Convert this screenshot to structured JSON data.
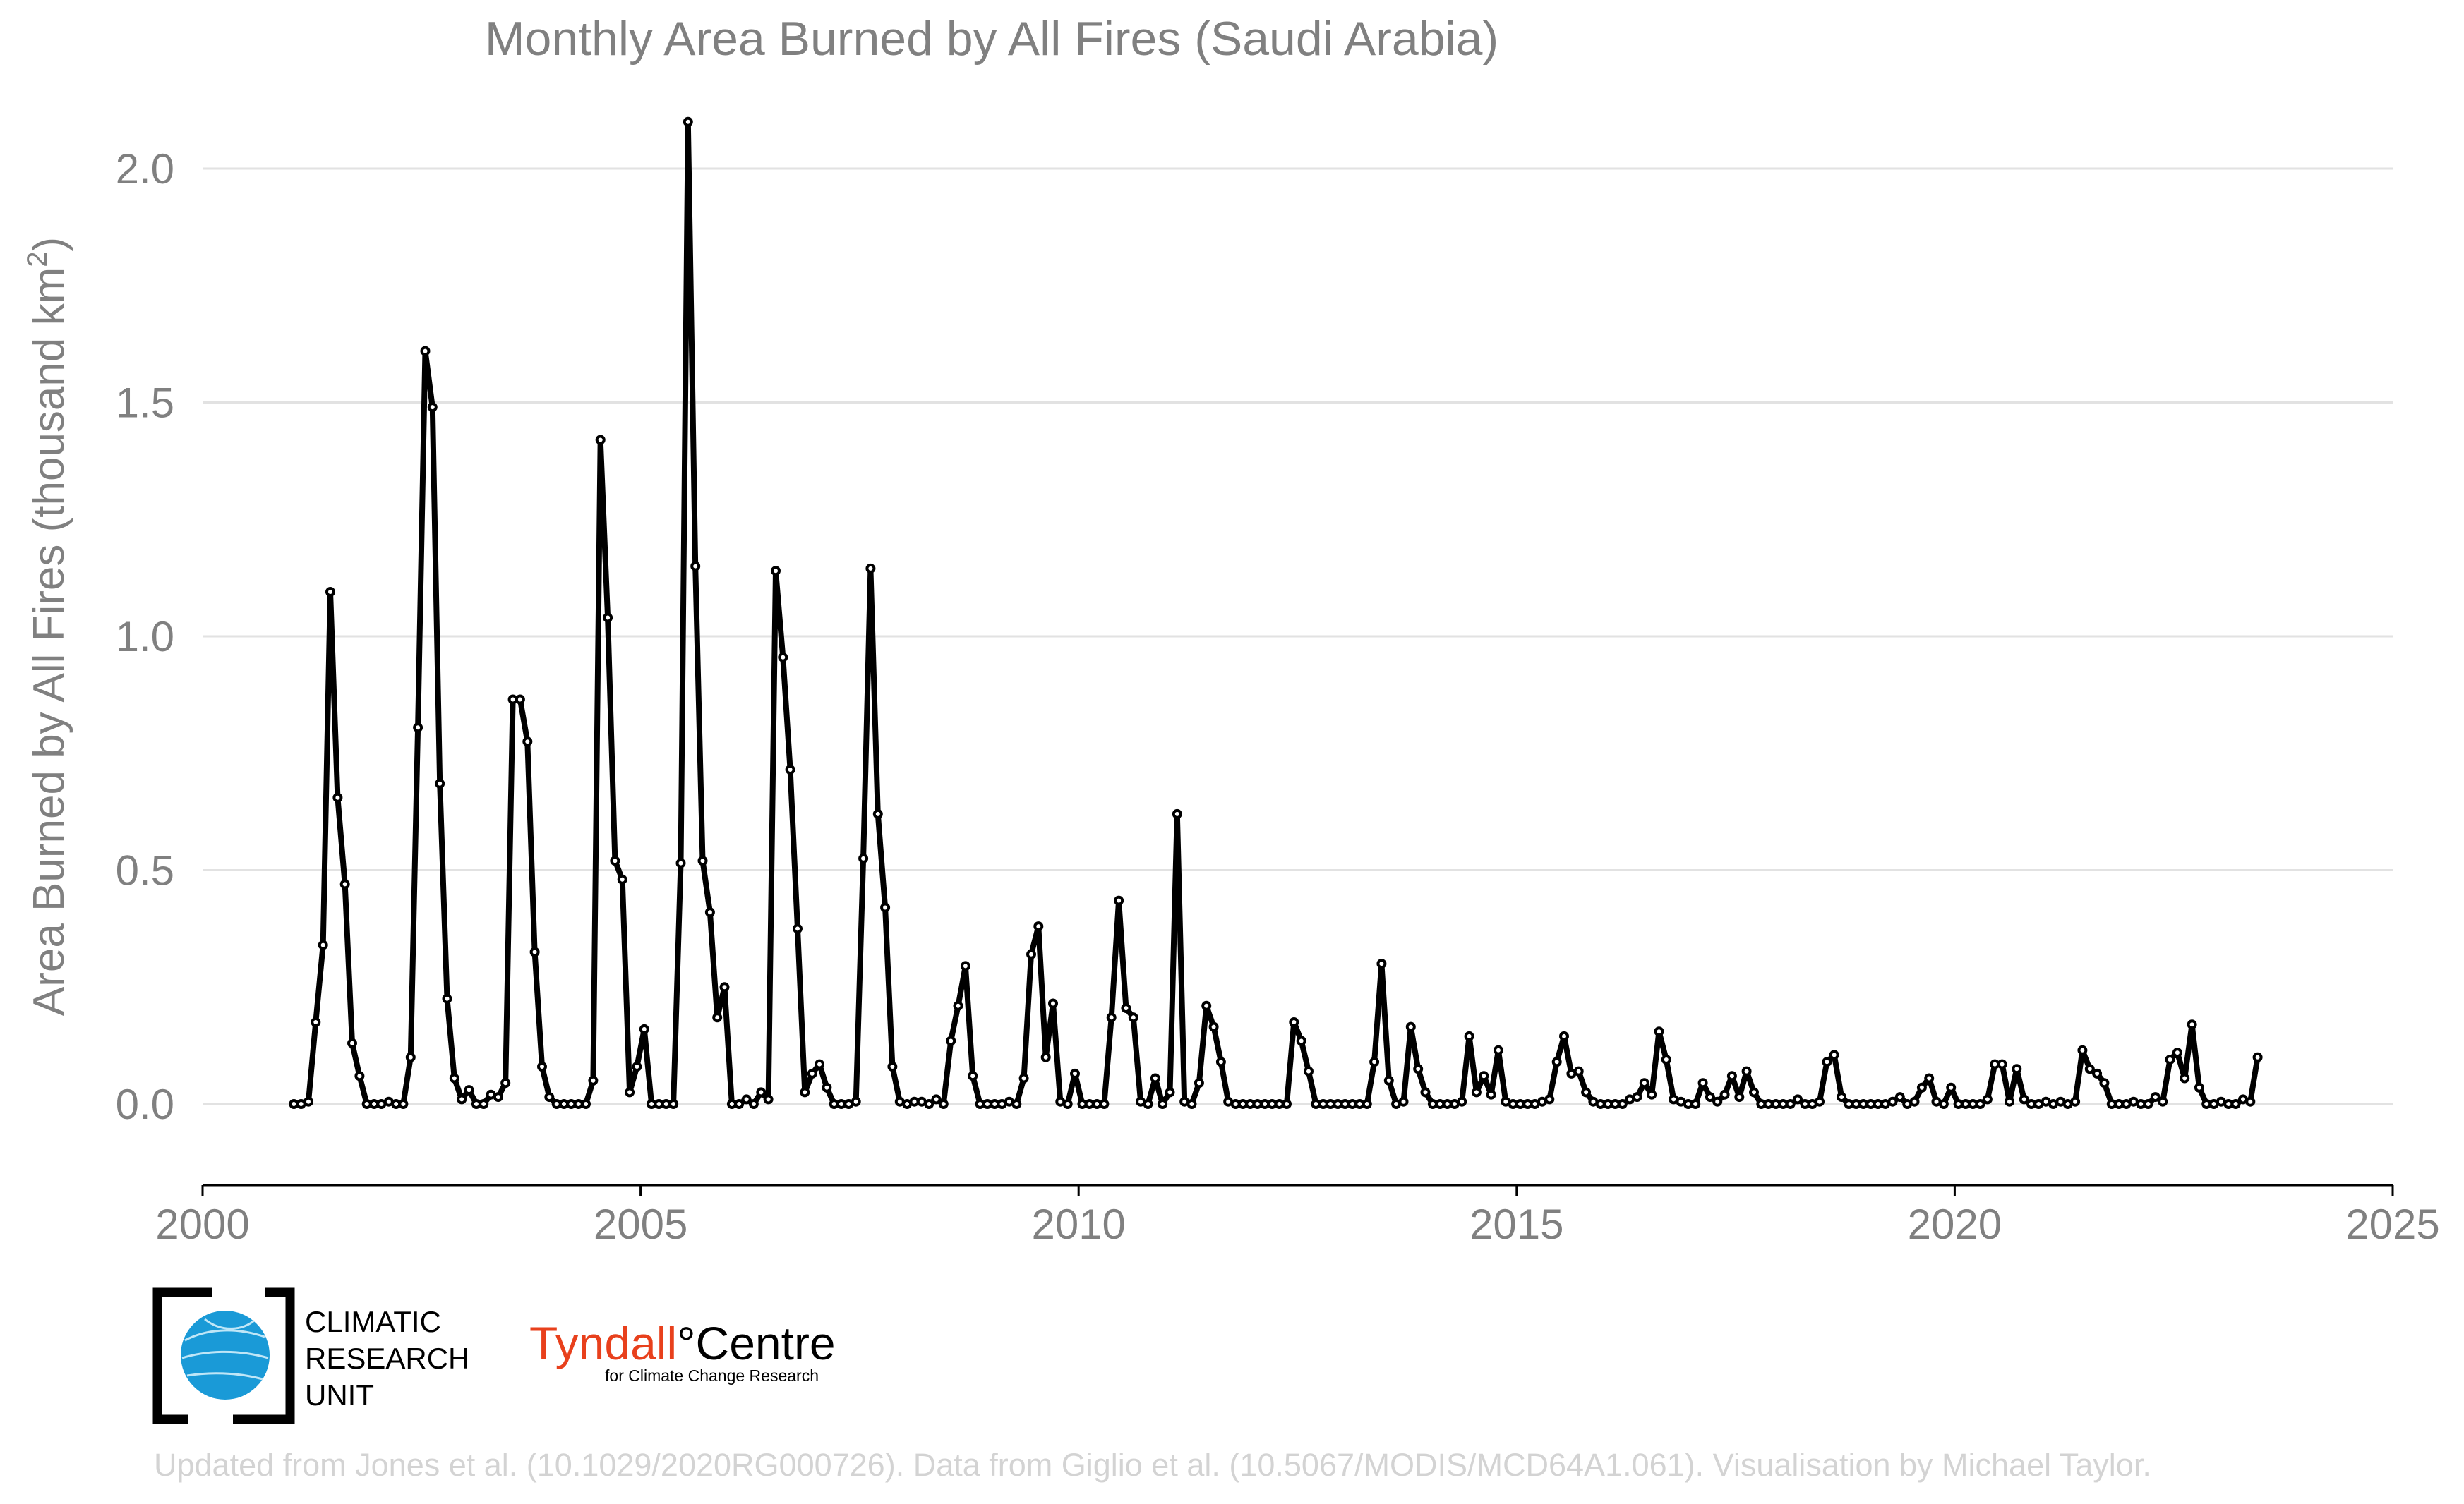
{
  "chart_data": {
    "type": "line",
    "title": "Monthly Area Burned by All Fires (Saudi Arabia)",
    "xlabel": "",
    "ylabel": "Area Burned by All Fires (thousand km²)",
    "xlim": [
      2000,
      2025
    ],
    "ylim": [
      -0.17,
      2.12
    ],
    "xticks": [
      2000,
      2005,
      2010,
      2015,
      2020,
      2025
    ],
    "yticks": [
      0.0,
      0.5,
      1.0,
      1.5,
      2.0
    ],
    "xtick_labels": [
      "2000",
      "2005",
      "2010",
      "2015",
      "2020",
      "2025"
    ],
    "ytick_labels": [
      "0.0",
      "0.5",
      "1.0",
      "1.5",
      "2.0"
    ],
    "grid": "horizontal",
    "x_start": "2001-01",
    "series": [
      {
        "color": "#000000",
        "values": [
          0.0,
          0.0,
          0.005,
          0.175,
          0.34,
          1.095,
          0.655,
          0.47,
          0.13,
          0.06,
          0.0,
          0.0,
          0.0,
          0.005,
          0.0,
          0.0,
          0.1,
          0.805,
          1.61,
          1.49,
          0.685,
          0.225,
          0.055,
          0.01,
          0.03,
          0.0,
          0.0,
          0.02,
          0.015,
          0.045,
          0.865,
          0.865,
          0.775,
          0.325,
          0.08,
          0.015,
          0.0,
          0.0,
          0.0,
          0.0,
          0.0,
          0.05,
          1.42,
          1.04,
          0.52,
          0.48,
          0.025,
          0.08,
          0.16,
          0.0,
          0.0,
          0.0,
          0.0,
          0.515,
          2.1,
          1.15,
          0.52,
          0.41,
          0.185,
          0.25,
          0.0,
          0.0,
          0.01,
          0.0,
          0.025,
          0.01,
          1.14,
          0.955,
          0.715,
          0.375,
          0.025,
          0.065,
          0.085,
          0.035,
          0.0,
          0.0,
          0.0,
          0.005,
          0.525,
          1.145,
          0.62,
          0.42,
          0.08,
          0.005,
          0.0,
          0.005,
          0.005,
          0.0,
          0.01,
          0.0,
          0.135,
          0.21,
          0.295,
          0.06,
          0.0,
          0.0,
          0.0,
          0.0,
          0.005,
          0.0,
          0.055,
          0.32,
          0.38,
          0.1,
          0.215,
          0.005,
          0.0,
          0.065,
          0.0,
          0.0,
          0.0,
          0.0,
          0.185,
          0.435,
          0.205,
          0.185,
          0.005,
          0.0,
          0.055,
          0.0,
          0.025,
          0.62,
          0.005,
          0.0,
          0.045,
          0.21,
          0.165,
          0.09,
          0.005,
          0.0,
          0.0,
          0.0,
          0.0,
          0.0,
          0.0,
          0.0,
          0.0,
          0.175,
          0.135,
          0.07,
          0.0,
          0.0,
          0.0,
          0.0,
          0.0,
          0.0,
          0.0,
          0.0,
          0.09,
          0.3,
          0.05,
          0.0,
          0.005,
          0.165,
          0.075,
          0.025,
          0.0,
          0.0,
          0.0,
          0.0,
          0.005,
          0.145,
          0.025,
          0.06,
          0.02,
          0.115,
          0.005,
          0.0,
          0.0,
          0.0,
          0.0,
          0.005,
          0.01,
          0.09,
          0.145,
          0.065,
          0.07,
          0.025,
          0.005,
          0.0,
          0.0,
          0.0,
          0.0,
          0.01,
          0.015,
          0.045,
          0.02,
          0.155,
          0.095,
          0.01,
          0.005,
          0.0,
          0.0,
          0.045,
          0.015,
          0.005,
          0.02,
          0.06,
          0.015,
          0.07,
          0.025,
          0.0,
          0.0,
          0.0,
          0.0,
          0.0,
          0.01,
          0.0,
          0.0,
          0.005,
          0.09,
          0.105,
          0.015,
          0.0,
          0.0,
          0.0,
          0.0,
          0.0,
          0.0,
          0.005,
          0.015,
          0.0,
          0.005,
          0.035,
          0.055,
          0.005,
          0.0,
          0.035,
          0.0,
          0.0,
          0.0,
          0.0,
          0.01,
          0.085,
          0.085,
          0.005,
          0.075,
          0.01,
          0.0,
          0.0,
          0.005,
          0.0,
          0.005,
          0.0,
          0.005,
          0.115,
          0.075,
          0.065,
          0.045,
          0.0,
          0.0,
          0.0,
          0.005,
          0.0,
          0.0,
          0.015,
          0.005,
          0.095,
          0.11,
          0.055,
          0.17,
          0.035,
          0.0,
          0.0,
          0.005,
          0.0,
          0.0,
          0.01,
          0.005,
          0.1
        ]
      }
    ]
  },
  "logos": {
    "cru_line1": "CLIMATIC",
    "cru_line2": "RESEARCH",
    "cru_line3": "UNIT",
    "tyndall_name": "Tyndall",
    "tyndall_degree": "°",
    "tyndall_centre": "Centre",
    "tyndall_sub": "for Climate Change Research"
  },
  "credit": "Updated from Jones et al. (10.1029/2020RG000726). Data from Giglio et al. (10.5067/MODIS/MCD64A1.061). Visualisation by Michael Taylor.",
  "colors": {
    "text_gray": "#808080",
    "grid": "#e2e2e2",
    "credit": "#d3d3d3",
    "cru_globe": "#1a9ad7",
    "tyndall_red": "#e8401c"
  }
}
